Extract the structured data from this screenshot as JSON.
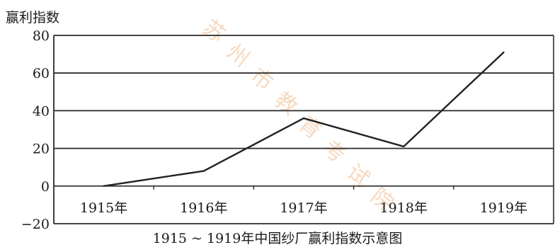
{
  "chart_data": {
    "type": "line",
    "title": "1915 ~ 1919年中国纱厂赢利指数示意图",
    "ylabel": "赢利指数",
    "xlabel": "",
    "categories": [
      "1915年",
      "1916年",
      "1917年",
      "1918年",
      "1919年"
    ],
    "series": [
      {
        "values": [
          0,
          8,
          36,
          21,
          71
        ],
        "color": "#222222"
      }
    ],
    "yticks": [
      80,
      60,
      40,
      20,
      0,
      -20
    ],
    "ylim": [
      -20,
      80
    ],
    "grid": true
  },
  "watermark": "苏州市教育考试院"
}
